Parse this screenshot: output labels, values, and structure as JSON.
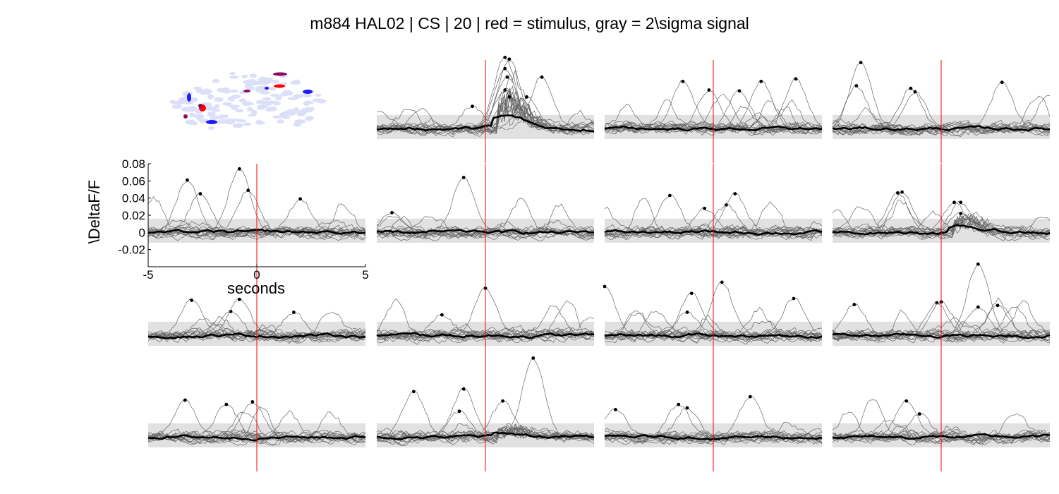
{
  "figure": {
    "title": "m884 HAL02 | CS | 20 | red = stimulus, gray = 2\\sigma signal"
  },
  "colors": {
    "stimulus": "#ff0000",
    "band": "#e1e1e1",
    "trial": "#666666",
    "mean": "#000000",
    "peak": "#000000",
    "map_background": "#dcdff8",
    "map_red": "#ff0000",
    "map_blue": "#1a1aff",
    "map_purple": "#8a0a60"
  },
  "chart_data": {
    "type": "line",
    "title": "m884 HAL02 | CS | 20 | red = stimulus, gray = 2\\sigma signal",
    "xlabel": "seconds",
    "ylabel": "\\DeltaF/F",
    "xlim": [
      -5,
      5
    ],
    "ylim": [
      -0.04,
      0.08
    ],
    "xticks": [
      "-5",
      "0",
      "5"
    ],
    "yticks": [
      "0.08",
      "0.06",
      "0.04",
      "0.02",
      "0",
      "-0.02"
    ],
    "stimulus_time": 0,
    "grid": false,
    "legend": "none",
    "layout": {
      "rows": 4,
      "cols": 4,
      "map_panel": [
        0,
        0
      ],
      "axes_panel": [
        1,
        0
      ]
    },
    "panels": [
      {
        "row": 0,
        "col": 1,
        "band": [
          -0.012,
          0.016
        ],
        "n_trials": 14,
        "response": 0.014,
        "peaks": [
          [
            -0.6,
            0.026
          ],
          [
            0.9,
            0.083
          ],
          [
            1.1,
            0.081
          ],
          [
            0.9,
            0.07
          ],
          [
            1.0,
            0.06
          ],
          [
            0.9,
            0.045
          ],
          [
            1.1,
            0.037
          ],
          [
            1.9,
            0.037
          ],
          [
            2.6,
            0.06
          ]
        ]
      },
      {
        "row": 0,
        "col": 2,
        "band": [
          -0.012,
          0.016
        ],
        "n_trials": 14,
        "response": 0,
        "peaks": [
          [
            -1.4,
            0.055
          ],
          [
            -0.2,
            0.045
          ],
          [
            1.2,
            0.044
          ],
          [
            2.2,
            0.055
          ],
          [
            3.8,
            0.058
          ]
        ]
      },
      {
        "row": 0,
        "col": 3,
        "band": [
          -0.012,
          0.016
        ],
        "n_trials": 14,
        "response": 0,
        "peaks": [
          [
            -3.7,
            0.077
          ],
          [
            -3.9,
            0.05
          ],
          [
            -1.4,
            0.047
          ],
          [
            -1.2,
            0.043
          ],
          [
            2.8,
            0.054
          ]
        ]
      },
      {
        "row": 1,
        "col": 0,
        "band": [
          -0.012,
          0.016
        ],
        "n_trials": 14,
        "response": 0,
        "peaks": [
          [
            -3.2,
            0.061
          ],
          [
            -2.6,
            0.045
          ],
          [
            -0.8,
            0.074
          ],
          [
            -0.4,
            0.049
          ],
          [
            2.0,
            0.039
          ]
        ]
      },
      {
        "row": 1,
        "col": 1,
        "band": [
          -0.012,
          0.016
        ],
        "n_trials": 14,
        "response": 0,
        "peaks": [
          [
            -4.3,
            0.023
          ],
          [
            -1.0,
            0.064
          ]
        ]
      },
      {
        "row": 1,
        "col": 2,
        "band": [
          -0.012,
          0.016
        ],
        "n_trials": 14,
        "response": 0,
        "peaks": [
          [
            -2.0,
            0.043
          ],
          [
            -0.4,
            0.028
          ],
          [
            0.6,
            0.032
          ],
          [
            1.0,
            0.045
          ]
        ]
      },
      {
        "row": 1,
        "col": 3,
        "band": [
          -0.012,
          0.016
        ],
        "n_trials": 14,
        "response": 0.006,
        "peaks": [
          [
            -2.0,
            0.046
          ],
          [
            -1.8,
            0.047
          ],
          [
            0.6,
            0.035
          ],
          [
            0.9,
            0.035
          ],
          [
            0.9,
            0.022
          ]
        ]
      },
      {
        "row": 2,
        "col": 0,
        "band": [
          -0.012,
          0.016
        ],
        "n_trials": 14,
        "response": 0,
        "peaks": [
          [
            -3.0,
            0.041
          ],
          [
            -1.2,
            0.028
          ],
          [
            -0.8,
            0.042
          ],
          [
            1.7,
            0.027
          ]
        ]
      },
      {
        "row": 2,
        "col": 1,
        "band": [
          -0.012,
          0.016
        ],
        "n_trials": 14,
        "response": 0,
        "peaks": [
          [
            -2.0,
            0.024
          ],
          [
            0.0,
            0.055
          ]
        ]
      },
      {
        "row": 2,
        "col": 2,
        "band": [
          -0.012,
          0.016
        ],
        "n_trials": 14,
        "response": 0,
        "peaks": [
          [
            -5.0,
            0.057
          ],
          [
            -1.0,
            0.049
          ],
          [
            -1.2,
            0.027
          ],
          [
            0.4,
            0.062
          ],
          [
            3.7,
            0.043
          ]
        ]
      },
      {
        "row": 2,
        "col": 3,
        "band": [
          -0.012,
          0.016
        ],
        "n_trials": 14,
        "response": 0,
        "peaks": [
          [
            -4.0,
            0.036
          ],
          [
            -0.2,
            0.038
          ],
          [
            0.0,
            0.039
          ],
          [
            1.7,
            0.083
          ],
          [
            1.7,
            0.033
          ],
          [
            2.6,
            0.035
          ]
        ]
      },
      {
        "row": 3,
        "col": 0,
        "band": [
          -0.012,
          0.016
        ],
        "n_trials": 14,
        "response": 0,
        "peaks": [
          [
            -3.3,
            0.043
          ],
          [
            -1.4,
            0.038
          ],
          [
            -0.2,
            0.041
          ]
        ]
      },
      {
        "row": 3,
        "col": 1,
        "band": [
          -0.012,
          0.016
        ],
        "n_trials": 14,
        "response": 0.004,
        "peaks": [
          [
            -3.3,
            0.053
          ],
          [
            -1.0,
            0.056
          ],
          [
            -1.2,
            0.03
          ],
          [
            0.8,
            0.042
          ],
          [
            2.2,
            0.092
          ]
        ]
      },
      {
        "row": 3,
        "col": 2,
        "band": [
          -0.012,
          0.016
        ],
        "n_trials": 14,
        "response": 0,
        "peaks": [
          [
            -4.5,
            0.032
          ],
          [
            -1.6,
            0.038
          ],
          [
            -1.2,
            0.034
          ],
          [
            1.7,
            0.047
          ]
        ]
      },
      {
        "row": 3,
        "col": 3,
        "band": [
          -0.012,
          0.016
        ],
        "n_trials": 14,
        "response": 0,
        "peaks": [
          [
            -1.6,
            0.042
          ],
          [
            -1.0,
            0.027
          ]
        ]
      }
    ]
  }
}
